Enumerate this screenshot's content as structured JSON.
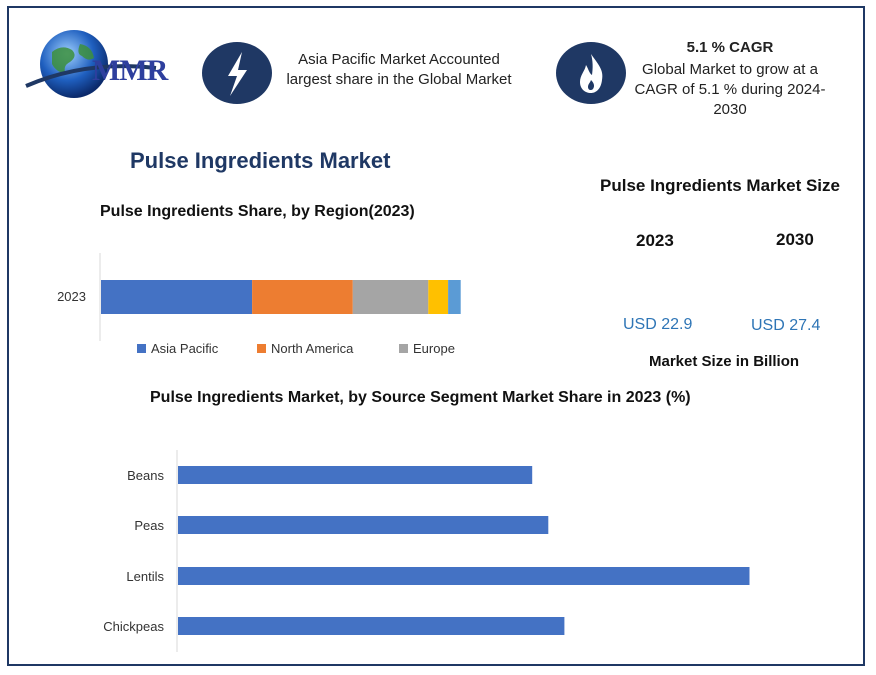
{
  "logo": {
    "text": "MMR",
    "icon": "globe-icon"
  },
  "info_cards": [
    {
      "icon": "lightning-icon",
      "heading": "",
      "text": "Asia Pacific Market Accounted largest share in the Global Market"
    },
    {
      "icon": "flame-icon",
      "heading": "5.1 % CAGR",
      "text": "Global Market to grow at a CAGR of 5.1 % during 2024-2030"
    }
  ],
  "main_title": "Pulse Ingredients Market",
  "market_size": {
    "title": "Pulse Ingredients Market Size",
    "years": [
      "2023",
      "2030"
    ],
    "values": [
      "USD 22.9",
      "USD 27.4"
    ],
    "caption": "Market Size in Billion"
  },
  "colors": {
    "accent": "#1f3864",
    "asia_pacific": "#4472c4",
    "north_america": "#ed7d31",
    "europe": "#a5a5a5",
    "segment4": "#ffc000",
    "segment5": "#5b9bd5",
    "bar": "#4472c4"
  },
  "chart_data": [
    {
      "type": "bar",
      "orientation": "horizontal",
      "stacked": true,
      "title": "Pulse Ingredients Share, by Region(2023)",
      "categories": [
        "2023"
      ],
      "series": [
        {
          "name": "Asia Pacific",
          "values": [
            42
          ]
        },
        {
          "name": "North America",
          "values": [
            28
          ]
        },
        {
          "name": "Europe",
          "values": [
            21
          ]
        },
        {
          "values": [
            5.5
          ]
        },
        {
          "values": [
            3.5
          ]
        }
      ],
      "xlim": [
        0,
        100
      ],
      "legend": "bottom",
      "grid": false
    },
    {
      "type": "bar",
      "orientation": "horizontal",
      "title": "Pulse Ingredients Market, by Source Segment Market Share in 2023 (%)",
      "categories": [
        "Beans",
        "Peas",
        "Lentils",
        "Chickpeas"
      ],
      "values": [
        22,
        23,
        35.5,
        24
      ],
      "xlim": [
        0,
        40
      ],
      "legend": "none",
      "grid": false
    }
  ]
}
